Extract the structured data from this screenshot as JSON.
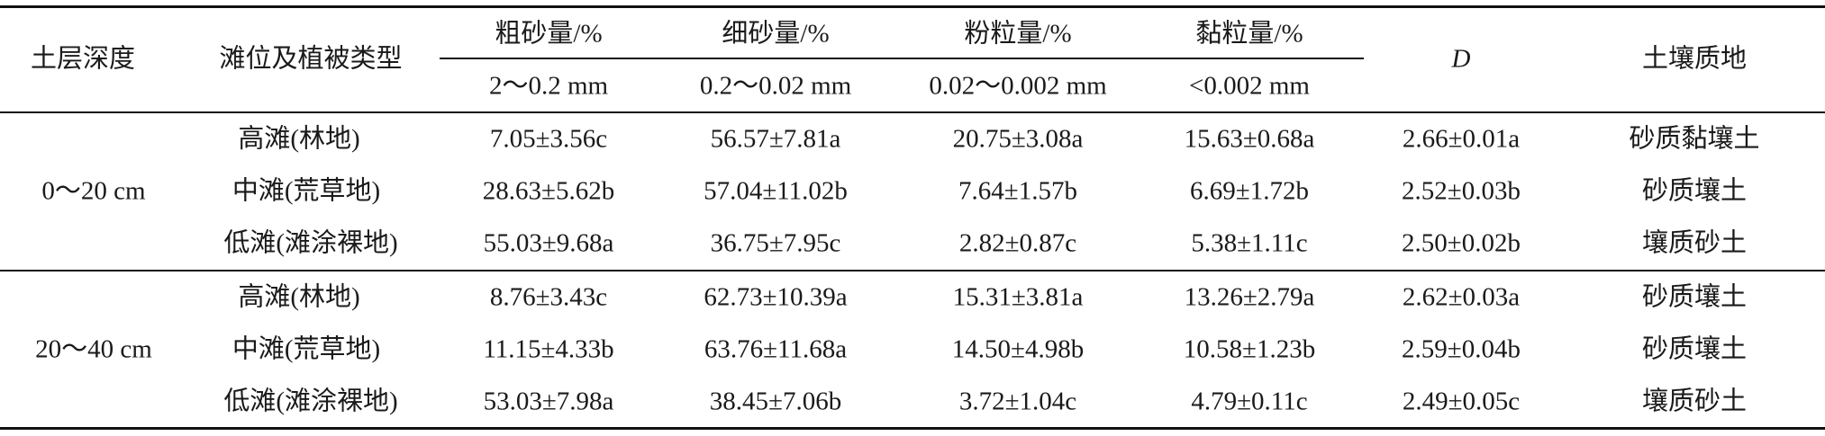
{
  "header": {
    "depth": "土层深度",
    "position": "滩位及植被类型",
    "coarse": "粗砂量/%",
    "fine": "细砂量/%",
    "silt": "粉粒量/%",
    "clay": "黏粒量/%",
    "coarse_range": "2～0.2 mm",
    "fine_range": "0.2～0.02 mm",
    "silt_range": "0.02～0.002 mm",
    "clay_range": "<0.002 mm",
    "d": "D",
    "texture": "土壤质地"
  },
  "groups": [
    {
      "depth": "0～20 cm",
      "rows": [
        {
          "position": "高滩(林地)",
          "coarse": "7.05±3.56c",
          "fine": "56.57±7.81a",
          "silt": "20.75±3.08a",
          "clay": "15.63±0.68a",
          "d": "2.66±0.01a",
          "texture": "砂质黏壤土"
        },
        {
          "position": "中滩(荒草地)",
          "coarse": "28.63±5.62b",
          "fine": "57.04±11.02b",
          "silt": "7.64±1.57b",
          "clay": "6.69±1.72b",
          "d": "2.52±0.03b",
          "texture": "砂质壤土"
        },
        {
          "position": "低滩(滩涂裸地)",
          "coarse": "55.03±9.68a",
          "fine": "36.75±7.95c",
          "silt": "2.82±0.87c",
          "clay": "5.38±1.11c",
          "d": "2.50±0.02b",
          "texture": "壤质砂土"
        }
      ]
    },
    {
      "depth": "20～40 cm",
      "rows": [
        {
          "position": "高滩(林地)",
          "coarse": "8.76±3.43c",
          "fine": "62.73±10.39a",
          "silt": "15.31±3.81a",
          "clay": "13.26±2.79a",
          "d": "2.62±0.03a",
          "texture": "砂质壤土"
        },
        {
          "position": "中滩(荒草地)",
          "coarse": "11.15±4.33b",
          "fine": "63.76±11.68a",
          "silt": "14.50±4.98b",
          "clay": "10.58±1.23b",
          "d": "2.59±0.04b",
          "texture": "砂质壤土"
        },
        {
          "position": "低滩(滩涂裸地)",
          "coarse": "53.03±7.98a",
          "fine": "38.45±7.06b",
          "silt": "3.72±1.04c",
          "clay": "4.79±0.11c",
          "d": "2.49±0.05c",
          "texture": "壤质砂土"
        }
      ]
    }
  ]
}
